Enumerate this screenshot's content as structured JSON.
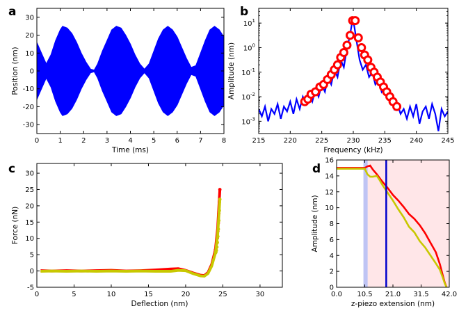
{
  "chart_data": [
    {
      "panel": "a",
      "type": "line",
      "xlabel": "Time (ms)",
      "ylabel": "Position (nm)",
      "xlim": [
        0,
        8
      ],
      "ylim": [
        -35,
        35
      ],
      "xticks": [
        "0",
        "1",
        "2",
        "3",
        "4",
        "5",
        "6",
        "7",
        "8"
      ],
      "yticks": [
        "-30",
        "-20",
        "-10",
        "0",
        "10",
        "20",
        "30"
      ],
      "series": [
        {
          "color": "#0000ff",
          "envelope_x": [
            0,
            0.2,
            0.4,
            0.6,
            0.8,
            1.0,
            1.1,
            1.3,
            1.5,
            1.7,
            1.9,
            2.1,
            2.3,
            2.45,
            2.6,
            2.8,
            3.0,
            3.2,
            3.4,
            3.6,
            3.8,
            4.0,
            4.2,
            4.4,
            4.6,
            4.8,
            5.0,
            5.2,
            5.4,
            5.6,
            5.8,
            6.0,
            6.2,
            6.4,
            6.6,
            6.8,
            7.0,
            7.2,
            7.4,
            7.6,
            7.8,
            8.0
          ],
          "envelope_y": [
            16,
            10,
            4,
            9,
            17,
            23,
            25,
            24,
            21,
            16,
            10,
            5,
            1,
            0.5,
            4,
            11,
            17,
            23,
            25,
            24,
            20,
            15,
            9,
            4,
            1,
            4,
            11,
            18,
            23,
            25,
            23,
            19,
            13,
            7,
            2,
            3,
            10,
            17,
            23,
            25,
            23,
            19
          ]
        }
      ]
    },
    {
      "panel": "b",
      "type": "line",
      "xlabel": "Frequency (kHz)",
      "ylabel": "Amplitude (nm)",
      "xlim": [
        215,
        245
      ],
      "ylim_log10": [
        -3.5,
        1.6
      ],
      "xticks": [
        "215",
        "220",
        "225",
        "230",
        "235",
        "240",
        "245"
      ],
      "yticks": [
        {
          "base": "10",
          "exp": "1",
          "log": 1
        },
        {
          "base": "10",
          "exp": "0",
          "log": 0
        },
        {
          "base": "10",
          "exp": "-1",
          "log": -1
        },
        {
          "base": "10",
          "exp": "-2",
          "log": -2
        },
        {
          "base": "10",
          "exp": "-3",
          "log": -3
        }
      ],
      "series": [
        {
          "color": "#0000ff",
          "x": [
            215,
            215.5,
            216,
            216.5,
            217,
            217.5,
            218,
            218.5,
            219,
            219.5,
            220,
            220.5,
            221,
            221.5,
            222,
            222.5,
            223,
            223.5,
            224,
            224.5,
            225,
            225.5,
            226,
            226.5,
            227,
            227.5,
            228,
            228.5,
            229,
            229.3,
            229.6,
            229.8,
            230,
            230.2,
            230.5,
            231,
            231.5,
            232,
            232.5,
            233,
            233.5,
            234,
            234.5,
            235,
            235.5,
            236,
            236.5,
            237,
            237.5,
            238,
            238.5,
            239,
            239.5,
            240,
            240.5,
            241,
            241.5,
            242,
            242.5,
            243,
            243.5,
            244,
            244.5,
            245
          ],
          "y_log10": [
            -2.5,
            -2.8,
            -2.4,
            -3.0,
            -2.5,
            -2.7,
            -2.3,
            -2.9,
            -2.4,
            -2.6,
            -2.2,
            -2.7,
            -2.1,
            -2.5,
            -2.0,
            -2.3,
            -1.9,
            -2.2,
            -1.7,
            -2.0,
            -1.5,
            -1.8,
            -1.2,
            -1.5,
            -0.9,
            -1.2,
            -0.5,
            -0.8,
            0.0,
            0.3,
            0.7,
            1.0,
            1.1,
            0.8,
            0.3,
            -0.5,
            -0.9,
            -0.7,
            -1.2,
            -1.0,
            -1.5,
            -1.3,
            -1.8,
            -1.6,
            -2.1,
            -2.0,
            -2.5,
            -2.3,
            -2.7,
            -2.5,
            -2.9,
            -2.4,
            -2.8,
            -2.3,
            -3.1,
            -2.6,
            -2.4,
            -2.9,
            -2.3,
            -2.7,
            -3.4,
            -2.5,
            -2.8,
            -2.6
          ]
        },
        {
          "color": "#ff0000",
          "marker": "circle",
          "x": [
            222.3,
            222.8,
            223.3,
            224.0,
            224.7,
            225.3,
            225.9,
            226.5,
            227.0,
            227.5,
            228.0,
            228.5,
            229.0,
            229.5,
            229.9,
            230.3,
            230.8,
            231.3,
            231.8,
            232.3,
            232.8,
            233.3,
            233.8,
            234.3,
            234.8,
            235.3,
            235.8,
            236.3,
            236.9
          ],
          "y_log10": [
            -2.2,
            -2.1,
            -1.9,
            -1.8,
            -1.6,
            -1.5,
            -1.3,
            -1.1,
            -0.9,
            -0.7,
            -0.4,
            -0.2,
            0.1,
            0.5,
            1.1,
            1.1,
            0.4,
            0.0,
            -0.3,
            -0.5,
            -0.8,
            -1.0,
            -1.2,
            -1.4,
            -1.6,
            -1.8,
            -2.0,
            -2.2,
            -2.4
          ]
        }
      ]
    },
    {
      "panel": "c",
      "type": "line",
      "xlabel": "Deflection (nm)",
      "ylabel": "Force (nN)",
      "xlim": [
        0,
        33
      ],
      "ylim": [
        -5,
        33
      ],
      "xticks": [
        "0",
        "5",
        "10",
        "15",
        "20",
        "25",
        "30"
      ],
      "yticks": [
        "-5",
        "0",
        "5",
        "10",
        "15",
        "20",
        "25",
        "30"
      ],
      "series": [
        {
          "color": "#ff0000",
          "x": [
            0.5,
            2,
            4,
            6,
            8,
            10,
            12,
            14,
            16,
            18,
            19,
            20,
            21,
            22,
            22.5,
            23,
            23.5,
            24,
            24.3,
            24.6
          ],
          "y": [
            0.1,
            0.0,
            0.1,
            0.0,
            0.1,
            0.2,
            0.0,
            0.1,
            0.3,
            0.6,
            0.7,
            0.2,
            -0.6,
            -1.3,
            -1.4,
            -0.5,
            2.0,
            6.5,
            13.0,
            25.0
          ]
        },
        {
          "color": "#c8c800",
          "x": [
            0.5,
            2,
            4,
            6,
            8,
            10,
            12,
            14,
            16,
            18,
            19,
            20,
            21,
            22,
            22.5,
            23,
            23.5,
            24,
            24.3,
            24.6
          ],
          "y": [
            -0.1,
            0.0,
            -0.1,
            0.0,
            -0.1,
            0.0,
            -0.1,
            0.0,
            -0.1,
            -0.1,
            0.2,
            0.1,
            -0.8,
            -1.5,
            -1.6,
            -0.8,
            1.5,
            5.5,
            11.0,
            22.0
          ]
        }
      ]
    },
    {
      "panel": "d",
      "type": "line",
      "xlabel": "z-piezo extension (nm)",
      "ylabel": "Amplitude (nm)",
      "xlim": [
        0,
        42
      ],
      "ylim": [
        0,
        16
      ],
      "xticks": [
        "0.0",
        "10.5",
        "21.0",
        "31.5",
        "42.0"
      ],
      "yticks": [
        "0",
        "2",
        "4",
        "6",
        "8",
        "10",
        "12",
        "14",
        "16"
      ],
      "shaded_regions": [
        {
          "x0": 10.0,
          "x1": 11.6,
          "color": "#aab0f0"
        },
        {
          "x0": 11.6,
          "x1": 42.0,
          "color": "#ffdde0"
        }
      ],
      "vline_x": 18.5,
      "vline_color": "#0000cc",
      "series": [
        {
          "color": "#ff0000",
          "x": [
            0,
            3,
            6,
            9,
            10.5,
            11.5,
            12.5,
            13.5,
            15,
            17,
            19,
            21,
            23,
            25,
            27,
            29,
            31,
            33,
            35,
            37,
            38.5,
            39.5,
            40.3,
            41
          ],
          "y": [
            15.0,
            15.0,
            15.0,
            15.0,
            15.0,
            15.2,
            15.3,
            14.8,
            14.2,
            13.3,
            12.5,
            11.6,
            10.9,
            10.1,
            9.2,
            8.6,
            7.8,
            6.8,
            5.6,
            4.4,
            2.9,
            1.6,
            0.6,
            0.0
          ]
        },
        {
          "color": "#c8c800",
          "x": [
            0,
            3,
            6,
            9,
            10.5,
            11.5,
            12.5,
            13.5,
            15,
            16,
            17,
            19,
            21,
            23,
            25,
            27,
            29,
            31,
            33,
            35,
            37,
            38.5,
            39.5,
            40.3,
            41
          ],
          "y": [
            14.9,
            14.9,
            14.9,
            14.9,
            14.9,
            14.2,
            13.9,
            13.9,
            14.0,
            13.5,
            12.9,
            11.9,
            10.9,
            9.8,
            8.8,
            7.6,
            6.9,
            5.8,
            5.0,
            4.0,
            3.0,
            2.2,
            1.3,
            0.5,
            0.0
          ]
        }
      ]
    }
  ]
}
